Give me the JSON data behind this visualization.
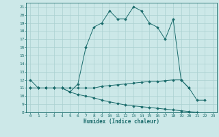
{
  "x": [
    0,
    1,
    2,
    3,
    4,
    5,
    6,
    7,
    8,
    9,
    10,
    11,
    12,
    13,
    14,
    15,
    16,
    17,
    18,
    19,
    20,
    21,
    22,
    23
  ],
  "curve_main": [
    12,
    11,
    11,
    11,
    11,
    10.5,
    11.5,
    16,
    18.5,
    19,
    20.5,
    19.5,
    19.5,
    21,
    20.5,
    19,
    18.5,
    17,
    19.5,
    12,
    11,
    9.5,
    9.5,
    null
  ],
  "curve_upper": [
    11,
    11,
    11,
    11,
    11,
    11.0,
    11.0,
    11.0,
    11.0,
    11.2,
    11.3,
    11.4,
    11.5,
    11.6,
    11.7,
    11.8,
    11.8,
    11.9,
    12.0,
    12.0,
    11.0,
    null,
    null,
    null
  ],
  "curve_lower": [
    11,
    11,
    11,
    11,
    11,
    10.5,
    10.2,
    10.0,
    9.8,
    9.5,
    9.3,
    9.1,
    8.9,
    8.8,
    8.7,
    8.6,
    8.5,
    8.4,
    8.3,
    8.2,
    8.1,
    8.0,
    null,
    null
  ],
  "line_color": "#1a6b6b",
  "bg_color": "#cce8e8",
  "grid_color": "#aad0d0",
  "xlabel": "Humidex (Indice chaleur)",
  "ylim": [
    8,
    21.5
  ],
  "xlim": [
    -0.5,
    23.5
  ],
  "yticks": [
    8,
    9,
    10,
    11,
    12,
    13,
    14,
    15,
    16,
    17,
    18,
    19,
    20,
    21
  ],
  "xticks": [
    0,
    1,
    2,
    3,
    4,
    5,
    6,
    7,
    8,
    9,
    10,
    11,
    12,
    13,
    14,
    15,
    16,
    17,
    18,
    19,
    20,
    21,
    22,
    23
  ]
}
